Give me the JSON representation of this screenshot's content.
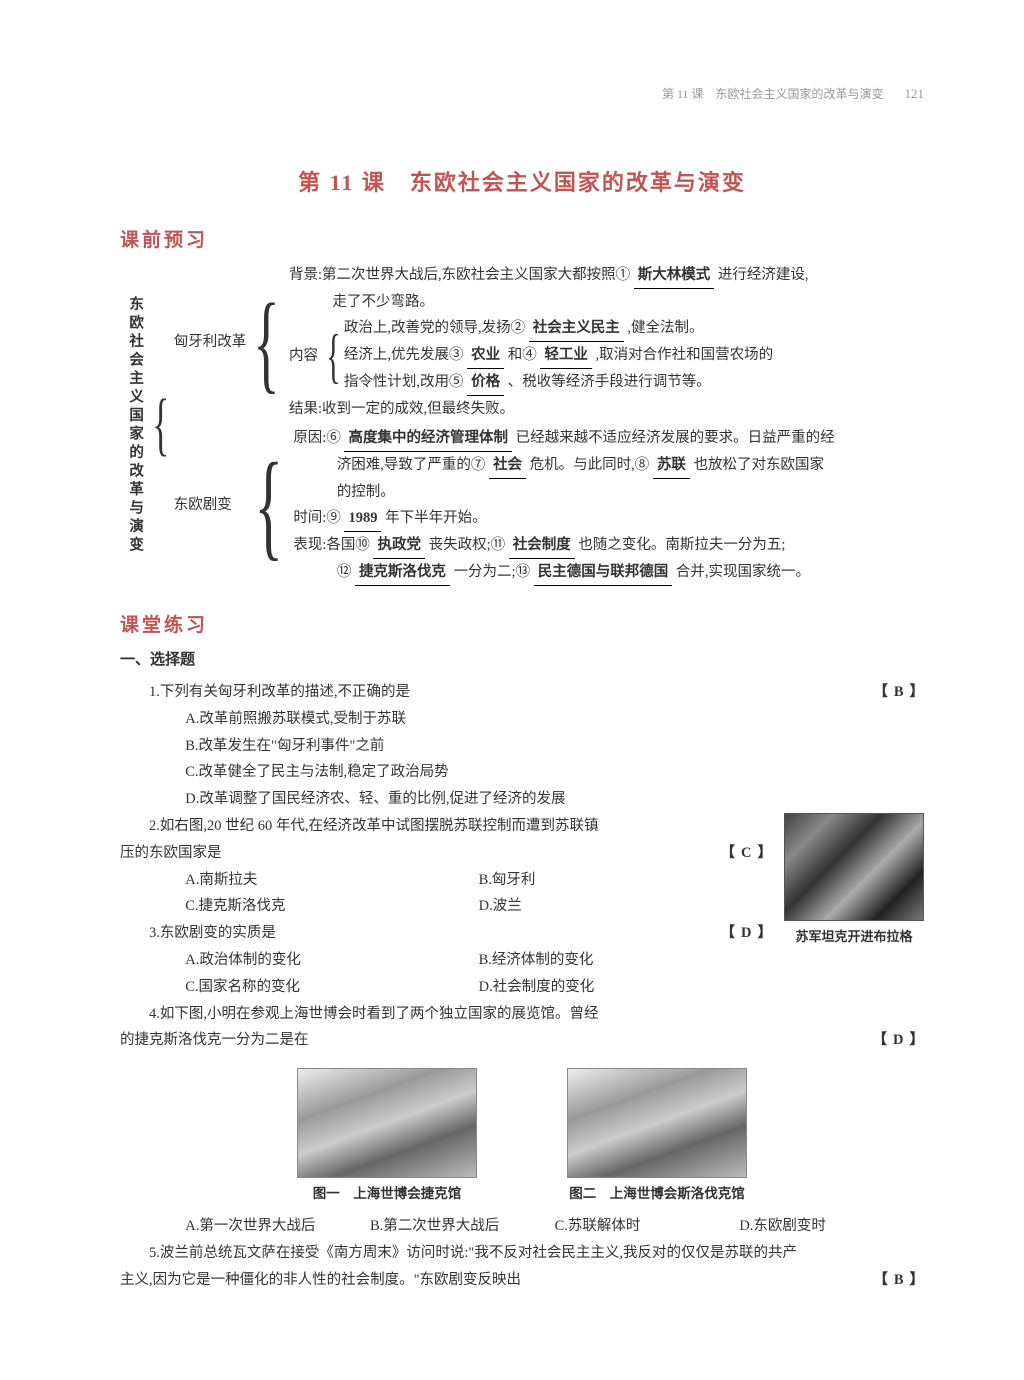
{
  "header": {
    "chapter": "第 11 课　东欧社会主义国家的改革与演变",
    "page": "121"
  },
  "title": "第 11 课　东欧社会主义国家的改革与演变",
  "sec1": "课前预习",
  "sec2": "课堂练习",
  "review": {
    "main_label": "东欧社会主义国家的改革与演变",
    "hungary": {
      "label": "匈牙利改革",
      "bg_pre": "背景:第二次世界大战后,东欧社会主义国家大都按照①",
      "b1": "斯大林模式",
      "bg_post": "进行经济建设,",
      "bg_line2": "走了不少弯路。",
      "content_label": "内容",
      "c1_pre": "政治上,改善党的领导,发扬②",
      "b2": "社会主义民主",
      "c1_post": ",健全法制。",
      "c2_pre": "经济上,优先发展③",
      "b3": "农业",
      "c2_mid1": "和④",
      "b4": "轻工业",
      "c2_mid2": ",取消对合作社和国营农场的",
      "c2_line2_pre": "指令性计划,改用⑤",
      "b5": "价格",
      "c2_line2_post": "、税收等经济手段进行调节等。",
      "result": "结果:收到一定的成效,但最终失败。"
    },
    "east": {
      "label": "东欧剧变",
      "r1_pre": "原因:⑥",
      "b6": "高度集中的经济管理体制",
      "r1_post": "已经越来越不适应经济发展的要求。日益严重的经",
      "r1_l2_pre": "济困难,导致了严重的⑦",
      "b7": "社会",
      "r1_l2_mid": "危机。与此同时,⑧",
      "b8": "苏联",
      "r1_l2_post": "也放松了对东欧国家",
      "r1_l3": "的控制。",
      "t_pre": "时间:⑨",
      "b9": "1989",
      "t_post": "年下半年开始。",
      "m_pre": "表现:各国⑩",
      "b10": "执政党",
      "m_mid1": "丧失政权;⑪",
      "b11": "社会制度",
      "m_mid2": "也随之变化。南斯拉夫一分为五;",
      "m_l2_pre": "⑫",
      "b12": "捷克斯洛伐克",
      "m_l2_mid": "一分为二;⑬",
      "b13": "民主德国与联邦德国",
      "m_l2_post": "合并,实现国家统一。"
    }
  },
  "ex_head": "一、选择题",
  "q1": {
    "text": "1.下列有关匈牙利改革的描述,不正确的是",
    "ans": "B",
    "a": "A.改革前照搬苏联模式,受制于苏联",
    "b": "B.改革发生在\"匈牙利事件\"之前",
    "c": "C.改革健全了民主与法制,稳定了政治局势",
    "d": "D.改革调整了国民经济农、轻、重的比例,促进了经济的发展"
  },
  "q2": {
    "text1": "2.如右图,20 世纪 60 年代,在经济改革中试图摆脱苏联控制而遭到苏联镇",
    "text2": "压的东欧国家是",
    "ans": "C",
    "a": "A.南斯拉夫",
    "b": "B.匈牙利",
    "c": "C.捷克斯洛伐克",
    "d": "D.波兰",
    "cap": "苏军坦克开进布拉格"
  },
  "q3": {
    "text": "3.东欧剧变的实质是",
    "ans": "D",
    "a": "A.政治体制的变化",
    "b": "B.经济体制的变化",
    "c": "C.国家名称的变化",
    "d": "D.社会制度的变化"
  },
  "q4": {
    "text1": "4.如下图,小明在参观上海世博会时看到了两个独立国家的展览馆。曾经",
    "text2": "的捷克斯洛伐克一分为二是在",
    "ans": "D",
    "cap1": "图一　上海世博会捷克馆",
    "cap2": "图二　上海世博会斯洛伐克馆",
    "a": "A.第一次世界大战后",
    "b": "B.第二次世界大战后",
    "c": "C.苏联解体时",
    "d": "D.东欧剧变时"
  },
  "q5": {
    "text1": "5.波兰前总统瓦文萨在接受《南方周末》访问时说:\"我不反对社会民主主义,我反对的仅仅是苏联的共产",
    "text2": "主义,因为它是一种僵化的非人性的社会制度。\"东欧剧变反映出",
    "ans": "B"
  }
}
